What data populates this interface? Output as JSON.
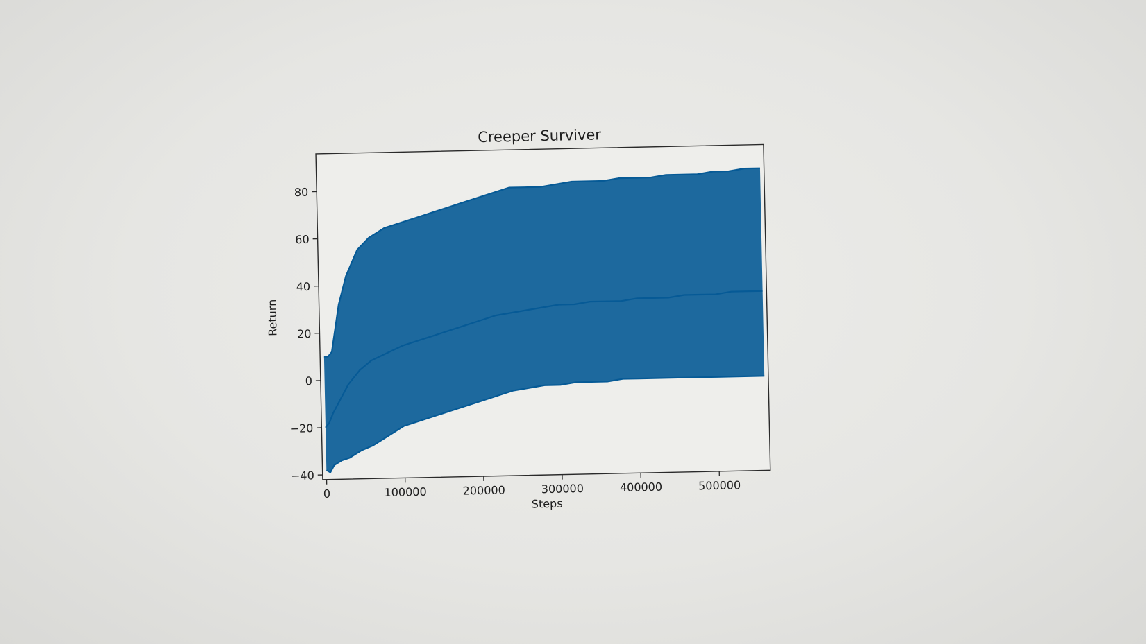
{
  "chart_data": {
    "type": "line",
    "title": "Creeper Surviver",
    "xlabel": "Steps",
    "ylabel": "Return",
    "xlim": [
      -5000,
      565000
    ],
    "ylim": [
      -42,
      96
    ],
    "xticks": [
      0,
      100000,
      200000,
      300000,
      400000,
      500000
    ],
    "xtick_labels": [
      "0",
      "100000",
      "200000",
      "300000",
      "400000",
      "500000"
    ],
    "yticks": [
      -40,
      -20,
      0,
      20,
      40,
      60,
      80
    ],
    "ytick_labels": [
      "−40",
      "−20",
      "0",
      "20",
      "40",
      "60",
      "80"
    ],
    "grid": false,
    "legend": "none",
    "series_color": "#065a96",
    "series": [
      {
        "x": [
          0,
          5000,
          10000,
          20000,
          30000,
          45000,
          60000,
          80000,
          100000,
          120000,
          140000,
          160000,
          180000,
          200000,
          220000,
          240000,
          260000,
          280000,
          300000,
          320000,
          340000,
          360000,
          380000,
          400000,
          420000,
          440000,
          460000,
          480000,
          500000,
          520000,
          540000,
          560000
        ],
        "y": [
          -20,
          -18,
          -14,
          -8,
          -2,
          4,
          8,
          11,
          14,
          16,
          18,
          20,
          22,
          24,
          26,
          27,
          28,
          29,
          30,
          30,
          31,
          31,
          31,
          32,
          32,
          32,
          33,
          33,
          33,
          34,
          34,
          34
        ]
      },
      {
        "x": [
          0,
          5000,
          10000,
          20000,
          30000,
          45000,
          60000,
          80000,
          100000,
          120000,
          140000,
          160000,
          180000,
          200000,
          220000,
          240000,
          260000,
          280000,
          300000,
          320000,
          340000,
          360000,
          380000,
          400000,
          420000,
          440000,
          460000,
          480000,
          500000,
          520000,
          540000,
          560000
        ],
        "y": [
          -38,
          -39,
          -36,
          -34,
          -33,
          -30,
          -28,
          -24,
          -20,
          -18,
          -16,
          -14,
          -12,
          -10,
          -8,
          -6,
          -5,
          -4,
          -4,
          -3,
          -3,
          -3,
          -2,
          -2,
          -2,
          -2,
          -2,
          -2,
          -2,
          -2,
          -2,
          -2
        ]
      },
      {
        "x": [
          0,
          5000,
          10000,
          20000,
          30000,
          45000,
          60000,
          80000,
          100000,
          120000,
          140000,
          160000,
          180000,
          200000,
          220000,
          240000,
          260000,
          280000,
          300000,
          320000,
          340000,
          360000,
          380000,
          400000,
          420000,
          440000,
          460000,
          480000,
          500000,
          520000,
          540000,
          560000
        ],
        "y": [
          10,
          10,
          12,
          32,
          44,
          55,
          60,
          64,
          66,
          68,
          70,
          72,
          74,
          76,
          78,
          80,
          80,
          80,
          81,
          82,
          82,
          82,
          83,
          83,
          83,
          84,
          84,
          84,
          85,
          85,
          86,
          86
        ]
      }
    ]
  }
}
